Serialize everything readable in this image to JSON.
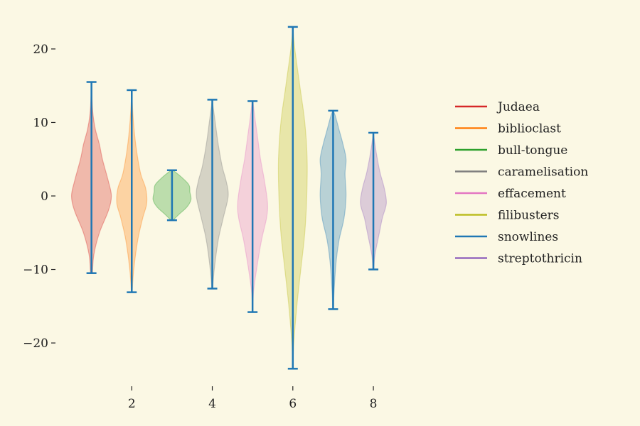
{
  "chart_data": {
    "type": "violin",
    "title": "",
    "xlabel": "",
    "ylabel": "",
    "x_ticks": [
      2,
      4,
      6,
      8
    ],
    "y_ticks": [
      20,
      10,
      0,
      -10,
      -20
    ],
    "y_tick_labels": [
      "20",
      "10",
      "0",
      "−10",
      "−20"
    ],
    "ylim": [
      -25.5,
      25.5
    ],
    "xlim": [
      0,
      9.5
    ],
    "legend_position": "right",
    "grid": false,
    "series": [
      {
        "name": "Judaea",
        "x": 1,
        "min": -10.5,
        "max": 15.5,
        "color": "#d62728",
        "profile": [
          [
            -10.5,
            0.05
          ],
          [
            -8,
            0.12
          ],
          [
            -5,
            0.4
          ],
          [
            -2,
            0.85
          ],
          [
            0,
            1.0
          ],
          [
            2,
            0.85
          ],
          [
            5,
            0.55
          ],
          [
            7,
            0.4
          ],
          [
            9,
            0.2
          ],
          [
            11,
            0.08
          ],
          [
            13,
            0.03
          ],
          [
            15.5,
            0.0
          ]
        ]
      },
      {
        "name": "biblioclast",
        "x": 2,
        "min": -13.1,
        "max": 14.4,
        "color": "#ff7f0e",
        "profile": [
          [
            -13.1,
            0.02
          ],
          [
            -10,
            0.1
          ],
          [
            -6,
            0.3
          ],
          [
            -3,
            0.55
          ],
          [
            -1,
            0.75
          ],
          [
            1,
            0.7
          ],
          [
            3,
            0.45
          ],
          [
            6,
            0.25
          ],
          [
            9,
            0.12
          ],
          [
            12,
            0.04
          ],
          [
            14.4,
            0.0
          ]
        ]
      },
      {
        "name": "bull-tongue",
        "x": 3,
        "min": -3.3,
        "max": 3.5,
        "color": "#2ca02c",
        "profile": [
          [
            -3.3,
            0.05
          ],
          [
            -2.5,
            0.35
          ],
          [
            -1.5,
            0.75
          ],
          [
            -0.5,
            0.95
          ],
          [
            0.5,
            0.9
          ],
          [
            1.5,
            0.85
          ],
          [
            2.5,
            0.5
          ],
          [
            3.5,
            0.05
          ]
        ]
      },
      {
        "name": "caramelisation",
        "x": 4,
        "min": -12.6,
        "max": 13.1,
        "color": "#7f7f7f",
        "profile": [
          [
            -12.6,
            0.02
          ],
          [
            -10,
            0.1
          ],
          [
            -6,
            0.3
          ],
          [
            -3,
            0.55
          ],
          [
            0,
            0.8
          ],
          [
            2,
            0.7
          ],
          [
            4,
            0.5
          ],
          [
            7,
            0.3
          ],
          [
            10,
            0.15
          ],
          [
            12,
            0.05
          ],
          [
            13.1,
            0.0
          ]
        ]
      },
      {
        "name": "effacement",
        "x": 5,
        "min": -15.8,
        "max": 12.9,
        "color": "#e377c2",
        "profile": [
          [
            -15.8,
            0.0
          ],
          [
            -13,
            0.05
          ],
          [
            -10,
            0.2
          ],
          [
            -6,
            0.45
          ],
          [
            -3,
            0.7
          ],
          [
            -1,
            0.75
          ],
          [
            2,
            0.6
          ],
          [
            5,
            0.4
          ],
          [
            8,
            0.25
          ],
          [
            11,
            0.1
          ],
          [
            12.9,
            0.02
          ]
        ]
      },
      {
        "name": "filibusters",
        "x": 6,
        "min": -23.5,
        "max": 23.0,
        "color": "#bcbd22",
        "profile": [
          [
            -23.5,
            0.0
          ],
          [
            -20,
            0.05
          ],
          [
            -15,
            0.2
          ],
          [
            -10,
            0.4
          ],
          [
            -5,
            0.6
          ],
          [
            0,
            0.7
          ],
          [
            5,
            0.72
          ],
          [
            10,
            0.6
          ],
          [
            15,
            0.35
          ],
          [
            20,
            0.1
          ],
          [
            23.0,
            0.0
          ]
        ]
      },
      {
        "name": "snowlines",
        "x": 7,
        "min": -15.4,
        "max": 11.6,
        "color": "#1f77b4",
        "profile": [
          [
            -15.4,
            0.02
          ],
          [
            -13,
            0.05
          ],
          [
            -9,
            0.15
          ],
          [
            -6,
            0.3
          ],
          [
            -3,
            0.55
          ],
          [
            0,
            0.65
          ],
          [
            3,
            0.6
          ],
          [
            5,
            0.65
          ],
          [
            7,
            0.5
          ],
          [
            9,
            0.3
          ],
          [
            11,
            0.1
          ],
          [
            11.6,
            0.0
          ]
        ]
      },
      {
        "name": "streptothricin",
        "x": 8,
        "min": -10.0,
        "max": 8.6,
        "color": "#9467bd",
        "profile": [
          [
            -10.0,
            0.02
          ],
          [
            -8,
            0.08
          ],
          [
            -5,
            0.3
          ],
          [
            -3,
            0.45
          ],
          [
            -1,
            0.65
          ],
          [
            1,
            0.55
          ],
          [
            3,
            0.35
          ],
          [
            5,
            0.2
          ],
          [
            7,
            0.08
          ],
          [
            8.6,
            0.0
          ]
        ]
      }
    ],
    "extrema_line_color": "#1f77b4"
  }
}
